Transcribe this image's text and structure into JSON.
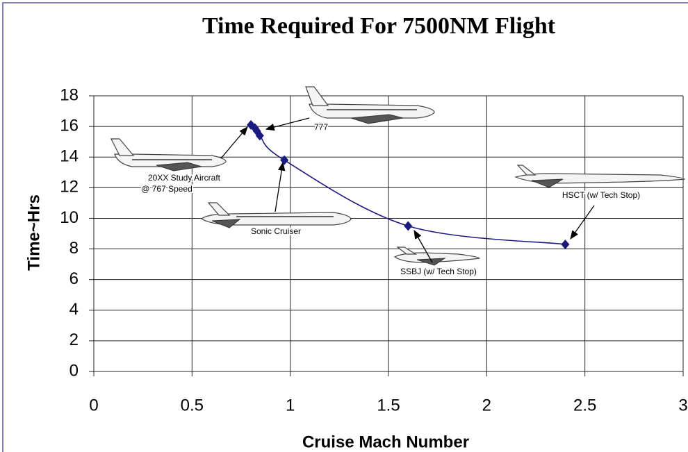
{
  "chart_data": {
    "type": "line",
    "title": "Time Required For 7500NM Flight",
    "xlabel": "Cruise Mach Number",
    "ylabel": "Time~Hrs",
    "x": [
      0.8,
      0.82,
      0.83,
      0.845,
      0.97,
      1.6,
      2.4
    ],
    "values": [
      16.1,
      15.9,
      15.7,
      15.4,
      13.8,
      9.5,
      8.3
    ],
    "color": "#1a1a80",
    "xlim": [
      0,
      3
    ],
    "xticks": [
      0,
      0.5,
      1,
      1.5,
      2,
      2.5,
      3
    ],
    "ylim": [
      0,
      18
    ],
    "yticks": [
      0,
      2,
      4,
      6,
      8,
      10,
      12,
      14,
      16,
      18
    ],
    "grid": true,
    "annotations": [
      "777",
      "20XX Study Aircraft",
      "@ 767 Speed",
      "Sonic Cruiser",
      "SSBJ (w/ Tech Stop)",
      "HSCT (w/ Tech Stop)"
    ]
  }
}
